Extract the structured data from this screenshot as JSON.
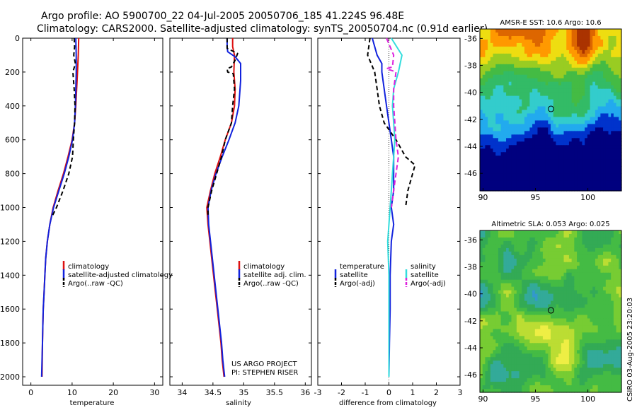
{
  "header": {
    "title_line1": "Argo profile: AO 5900700_22 04-Jul-2005 20050706_185 41.224S 96.48E",
    "title_line2": "Climatology: CARS2000. Satellite-adjusted climatology: synTS_20050704.nc (0.91d earlier)"
  },
  "credits": {
    "project": "US ARGO PROJECT",
    "pi": "PI: STEPHEN RISER",
    "stamp": "CSIRO 03-Aug-2005 23:20:03"
  },
  "colors": {
    "red": "#dd1111",
    "blue": "#1122dd",
    "black": "#000000",
    "cyan": "#33dddd",
    "magenta": "#dd22dd"
  },
  "chart_data": [
    {
      "id": "temperature",
      "type": "line",
      "xlabel": "temperature",
      "xlim": [
        -2,
        32
      ],
      "ylim": [
        2050,
        0
      ],
      "xticks": [
        0,
        10,
        20,
        30
      ],
      "yticks": [
        0,
        200,
        400,
        600,
        800,
        1000,
        1200,
        1400,
        1600,
        1800,
        2000
      ],
      "legend": [
        "climatology",
        "satellite-adjusted climatology",
        "Argo(..raw -QC)"
      ],
      "series": [
        {
          "name": "climatology",
          "color": "red",
          "dash": "",
          "points": [
            [
              11.6,
              0
            ],
            [
              11.5,
              100
            ],
            [
              11.3,
              200
            ],
            [
              11.1,
              300
            ],
            [
              10.9,
              400
            ],
            [
              10.6,
              500
            ],
            [
              10.0,
              600
            ],
            [
              9.0,
              700
            ],
            [
              7.9,
              800
            ],
            [
              6.6,
              900
            ],
            [
              5.4,
              1000
            ],
            [
              4.6,
              1100
            ],
            [
              4.0,
              1200
            ],
            [
              3.6,
              1300
            ],
            [
              3.4,
              1400
            ],
            [
              3.2,
              1500
            ],
            [
              3.0,
              1600
            ],
            [
              2.9,
              1700
            ],
            [
              2.8,
              1800
            ],
            [
              2.75,
              1900
            ],
            [
              2.7,
              2000
            ]
          ]
        },
        {
          "name": "satellite-adjusted climatology",
          "color": "blue",
          "dash": "",
          "points": [
            [
              10.9,
              0
            ],
            [
              11.0,
              100
            ],
            [
              11.0,
              200
            ],
            [
              10.9,
              300
            ],
            [
              10.8,
              400
            ],
            [
              10.6,
              500
            ],
            [
              10.1,
              600
            ],
            [
              9.2,
              700
            ],
            [
              8.1,
              800
            ],
            [
              6.8,
              900
            ],
            [
              5.5,
              1000
            ],
            [
              4.6,
              1100
            ],
            [
              4.0,
              1200
            ],
            [
              3.6,
              1300
            ],
            [
              3.4,
              1400
            ],
            [
              3.2,
              1500
            ],
            [
              3.0,
              1600
            ],
            [
              2.9,
              1700
            ],
            [
              2.8,
              1800
            ],
            [
              2.7,
              1900
            ],
            [
              2.6,
              2000
            ]
          ]
        },
        {
          "name": "Argo(..raw -QC)",
          "color": "black",
          "dash": "6,4",
          "points": [
            [
              10.5,
              0
            ],
            [
              10.6,
              50
            ],
            [
              10.4,
              100
            ],
            [
              10.8,
              150
            ],
            [
              10.2,
              200
            ],
            [
              10.5,
              300
            ],
            [
              10.7,
              400
            ],
            [
              10.6,
              500
            ],
            [
              10.3,
              600
            ],
            [
              10.1,
              700
            ],
            [
              9.2,
              800
            ],
            [
              7.8,
              900
            ],
            [
              6.2,
              1000
            ],
            [
              5.2,
              1050
            ]
          ]
        }
      ]
    },
    {
      "id": "salinity",
      "type": "line",
      "xlabel": "salinity",
      "xlim": [
        33.8,
        36.1
      ],
      "ylim": [
        2050,
        0
      ],
      "xticks": [
        34,
        34.5,
        35,
        35.5,
        36
      ],
      "legend": [
        "climatology",
        "satellite adj. clim.",
        "Argo(..raw -QC)"
      ],
      "series": [
        {
          "name": "climatology",
          "color": "red",
          "dash": "",
          "points": [
            [
              34.82,
              0
            ],
            [
              34.82,
              50
            ],
            [
              34.85,
              100
            ],
            [
              34.84,
              200
            ],
            [
              34.86,
              300
            ],
            [
              34.85,
              400
            ],
            [
              34.8,
              500
            ],
            [
              34.7,
              600
            ],
            [
              34.62,
              700
            ],
            [
              34.53,
              800
            ],
            [
              34.46,
              900
            ],
            [
              34.4,
              1000
            ],
            [
              34.42,
              1100
            ],
            [
              34.45,
              1200
            ],
            [
              34.48,
              1300
            ],
            [
              34.51,
              1400
            ],
            [
              34.54,
              1500
            ],
            [
              34.57,
              1600
            ],
            [
              34.6,
              1700
            ],
            [
              34.63,
              1800
            ],
            [
              34.65,
              1900
            ],
            [
              34.68,
              2000
            ]
          ]
        },
        {
          "name": "satellite adj. clim.",
          "color": "blue",
          "dash": "",
          "points": [
            [
              34.73,
              0
            ],
            [
              34.73,
              50
            ],
            [
              34.74,
              80
            ],
            [
              34.86,
              110
            ],
            [
              34.95,
              150
            ],
            [
              34.95,
              250
            ],
            [
              34.92,
              400
            ],
            [
              34.86,
              500
            ],
            [
              34.76,
              600
            ],
            [
              34.65,
              700
            ],
            [
              34.55,
              800
            ],
            [
              34.47,
              900
            ],
            [
              34.42,
              1000
            ],
            [
              34.43,
              1100
            ],
            [
              34.46,
              1200
            ],
            [
              34.49,
              1300
            ],
            [
              34.52,
              1400
            ],
            [
              34.55,
              1500
            ],
            [
              34.58,
              1600
            ],
            [
              34.61,
              1700
            ],
            [
              34.64,
              1800
            ],
            [
              34.66,
              1900
            ],
            [
              34.69,
              2000
            ]
          ]
        },
        {
          "name": "Argo(..raw -QC)",
          "color": "black",
          "dash": "6,4",
          "points": [
            [
              34.73,
              0
            ],
            [
              34.73,
              60
            ],
            [
              34.9,
              90
            ],
            [
              34.86,
              130
            ],
            [
              34.8,
              170
            ],
            [
              34.73,
              180
            ],
            [
              34.74,
              200
            ],
            [
              34.83,
              210
            ],
            [
              34.85,
              300
            ],
            [
              34.82,
              400
            ],
            [
              34.8,
              500
            ],
            [
              34.7,
              600
            ],
            [
              34.64,
              700
            ],
            [
              34.56,
              800
            ],
            [
              34.48,
              900
            ],
            [
              34.42,
              1000
            ],
            [
              34.42,
              1050
            ]
          ]
        }
      ]
    },
    {
      "id": "difference",
      "type": "line",
      "xlabel": "difference from climatology",
      "xlim": [
        -3,
        3
      ],
      "ylim": [
        2050,
        0
      ],
      "xticks": [
        -3,
        -2,
        -1,
        0,
        1,
        2,
        3
      ],
      "legend_left": [
        "temperature",
        "satellite",
        "Argo(-adj)"
      ],
      "legend_right": [
        "salinity",
        "satellite",
        "Argo(-adj)"
      ],
      "series": [
        {
          "name": "temperature satellite",
          "color": "blue",
          "dash": "",
          "points": [
            [
              -0.7,
              0
            ],
            [
              -0.5,
              100
            ],
            [
              -0.3,
              150
            ],
            [
              -0.3,
              200
            ],
            [
              -0.2,
              300
            ],
            [
              -0.1,
              400
            ],
            [
              0.0,
              500
            ],
            [
              0.1,
              600
            ],
            [
              0.2,
              700
            ],
            [
              0.2,
              800
            ],
            [
              0.2,
              900
            ],
            [
              0.1,
              1000
            ],
            [
              0.2,
              1100
            ],
            [
              0.1,
              1200
            ],
            [
              0.05,
              1400
            ],
            [
              0.05,
              1600
            ],
            [
              0.02,
              1800
            ],
            [
              0.0,
              2000
            ]
          ]
        },
        {
          "name": "temperature Argo(-adj)",
          "color": "black",
          "dash": "6,4",
          "points": [
            [
              -0.8,
              0
            ],
            [
              -0.9,
              100
            ],
            [
              -0.6,
              200
            ],
            [
              -0.5,
              300
            ],
            [
              -0.4,
              400
            ],
            [
              -0.2,
              500
            ],
            [
              0.3,
              600
            ],
            [
              0.7,
              700
            ],
            [
              1.1,
              750
            ],
            [
              1.0,
              800
            ],
            [
              0.8,
              900
            ],
            [
              0.7,
              1000
            ]
          ]
        },
        {
          "name": "salinity satellite",
          "color": "cyan",
          "dash": "",
          "points": [
            [
              0.1,
              0
            ],
            [
              0.55,
              100
            ],
            [
              0.4,
              200
            ],
            [
              0.2,
              300
            ],
            [
              0.15,
              400
            ],
            [
              0.2,
              500
            ],
            [
              0.25,
              600
            ],
            [
              0.2,
              700
            ],
            [
              0.15,
              800
            ],
            [
              0.1,
              900
            ],
            [
              0.05,
              1000
            ],
            [
              -0.05,
              1200
            ],
            [
              0.0,
              1400
            ],
            [
              0.0,
              1600
            ],
            [
              0.0,
              1800
            ],
            [
              0.0,
              2000
            ]
          ]
        },
        {
          "name": "salinity Argo(-adj)",
          "color": "magenta",
          "dash": "7,4",
          "points": [
            [
              -0.1,
              0
            ],
            [
              0.2,
              100
            ],
            [
              0.15,
              170
            ],
            [
              -0.1,
              180
            ],
            [
              0.3,
              200
            ],
            [
              0.2,
              300
            ],
            [
              0.2,
              400
            ],
            [
              0.25,
              500
            ],
            [
              0.3,
              600
            ],
            [
              0.4,
              700
            ],
            [
              0.3,
              800
            ],
            [
              0.2,
              900
            ],
            [
              0.1,
              1000
            ]
          ]
        }
      ]
    },
    {
      "id": "sst-map",
      "type": "heatmap",
      "title": "AMSR-E SST: 10.6 Argo: 10.6",
      "xlim": [
        89.7,
        103.2
      ],
      "ylim": [
        -47.3,
        -35.3
      ],
      "xticks": [
        90,
        95,
        100
      ],
      "yticks": [
        -36,
        -38,
        -40,
        -42,
        -44,
        -46
      ],
      "argo_position": {
        "lon": 96.48,
        "lat": -41.224
      },
      "palette": [
        "#00007f",
        "#0033cc",
        "#22aaee",
        "#33cccc",
        "#33bb66",
        "#44bb44",
        "#99cc22",
        "#eedd11",
        "#ff9900",
        "#dd6600",
        "#aa3300"
      ]
    },
    {
      "id": "sla-map",
      "type": "heatmap",
      "title": "Altimetric SLA: 0.053 Argo: 0.025",
      "xlim": [
        89.7,
        103.2
      ],
      "ylim": [
        -47.3,
        -35.3
      ],
      "xticks": [
        90,
        95,
        100
      ],
      "yticks": [
        -36,
        -38,
        -40,
        -42,
        -44,
        -46
      ],
      "argo_position": {
        "lon": 96.48,
        "lat": -41.224
      },
      "palette": [
        "#3399cc",
        "#33aa99",
        "#33aa55",
        "#44bb44",
        "#77cc33",
        "#bbdd33",
        "#eeee44"
      ]
    }
  ]
}
